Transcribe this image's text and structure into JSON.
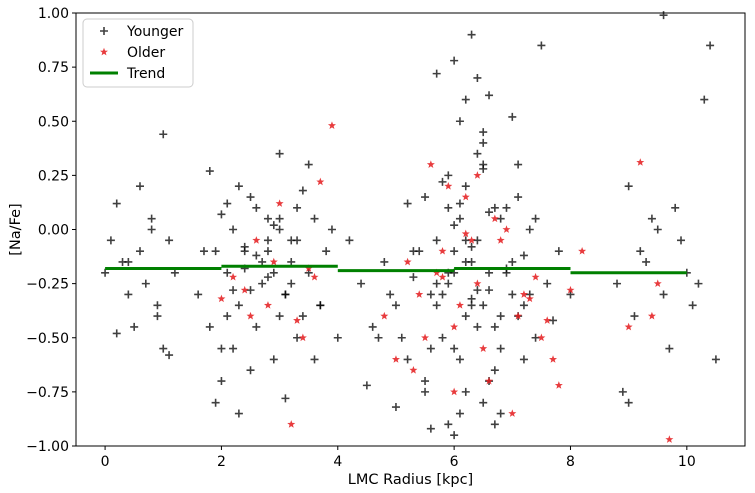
{
  "chart_data": {
    "type": "scatter",
    "title": "",
    "xlabel": "LMC Radius [kpc]",
    "ylabel": "[Na/Fe]",
    "xlim": [
      -0.5,
      11.0
    ],
    "ylim": [
      -1.0,
      1.0
    ],
    "xticks": [
      "0",
      "2",
      "4",
      "6",
      "8",
      "10"
    ],
    "yticks": [
      "−1.00",
      "−0.75",
      "−0.50",
      "−0.25",
      "0.00",
      "0.25",
      "0.50",
      "0.75",
      "1.00"
    ],
    "grid": false,
    "legend_position": "upper-left",
    "series": [
      {
        "name": "Younger",
        "marker": "plus",
        "color": "#000000",
        "x": [
          0.0,
          0.1,
          0.2,
          0.3,
          0.4,
          0.5,
          0.6,
          0.7,
          0.8,
          0.9,
          1.0,
          1.1,
          1.2,
          0.2,
          0.6,
          0.8,
          1.0,
          0.4,
          0.9,
          1.1,
          1.6,
          1.7,
          1.8,
          1.9,
          2.0,
          2.1,
          2.2,
          2.3,
          2.4,
          2.5,
          2.6,
          2.7,
          2.8,
          2.9,
          3.0,
          3.1,
          3.2,
          3.3,
          3.4,
          3.5,
          3.6,
          3.7,
          3.8,
          3.9,
          4.0,
          2.2,
          2.4,
          2.6,
          2.8,
          3.0,
          3.2,
          3.4,
          2.5,
          2.7,
          2.9,
          3.1,
          3.3,
          2.3,
          2.6,
          3.0,
          2.0,
          2.1,
          2.4,
          2.8,
          3.2,
          3.6,
          1.9,
          2.3,
          3.5,
          2.1,
          2.2,
          2.9,
          3.3,
          3.7,
          2.5,
          3.1,
          2.8,
          3.0,
          1.8,
          2.0,
          4.2,
          4.4,
          4.6,
          4.8,
          5.0,
          5.2,
          5.4,
          5.6,
          5.8,
          6.0,
          6.2,
          6.4,
          6.6,
          6.8,
          7.0,
          7.2,
          7.4,
          7.6,
          7.8,
          8.0,
          5.5,
          5.7,
          5.9,
          6.1,
          6.3,
          6.5,
          6.7,
          6.9,
          7.1,
          7.3,
          5.6,
          5.8,
          6.0,
          6.2,
          6.4,
          6.6,
          6.8,
          7.0,
          7.2,
          7.4,
          5.3,
          5.5,
          5.7,
          5.9,
          6.1,
          6.3,
          6.5,
          6.7,
          6.9,
          7.1,
          4.9,
          5.1,
          5.3,
          5.5,
          5.7,
          5.9,
          6.1,
          6.3,
          6.5,
          6.7,
          6.0,
          6.2,
          6.4,
          6.6,
          6.8,
          5.8,
          6.0,
          6.2,
          6.4,
          6.6,
          5.9,
          6.1,
          6.3,
          6.5,
          6.7,
          6.0,
          6.2,
          6.4,
          7.5,
          7.7,
          6.3,
          6.5,
          6.1,
          5.9,
          7.0,
          6.8,
          7.2,
          5.6,
          4.5,
          4.7,
          5.0,
          5.2,
          6.5,
          7.3,
          6.0,
          6.6,
          5.7,
          7.1,
          6.2,
          6.9,
          8.8,
          9.0,
          9.2,
          9.4,
          9.6,
          9.8,
          10.0,
          10.2,
          10.4,
          8.9,
          9.1,
          9.3,
          9.5,
          9.7,
          9.9,
          10.1,
          10.3,
          10.5,
          9.0,
          9.6
        ],
        "y": [
          -0.2,
          -0.05,
          0.12,
          -0.15,
          -0.3,
          -0.45,
          -0.1,
          -0.25,
          0.05,
          -0.35,
          -0.55,
          -0.05,
          -0.2,
          -0.48,
          0.2,
          0.0,
          0.44,
          -0.15,
          -0.4,
          -0.58,
          -0.3,
          -0.1,
          0.27,
          -0.8,
          -0.55,
          -0.2,
          0.0,
          -0.35,
          -0.1,
          0.15,
          -0.45,
          -0.25,
          -0.05,
          -0.6,
          0.05,
          -0.3,
          -0.15,
          0.1,
          -0.4,
          -0.2,
          0.05,
          -0.35,
          -0.1,
          0.0,
          -0.5,
          -0.28,
          -0.08,
          0.1,
          -0.22,
          -0.4,
          -0.05,
          0.18,
          -0.65,
          -0.15,
          0.02,
          -0.3,
          -0.5,
          0.2,
          -0.12,
          0.35,
          -0.7,
          -0.4,
          -0.18,
          0.05,
          -0.25,
          -0.6,
          -0.1,
          -0.85,
          0.3,
          0.12,
          -0.55,
          -0.2,
          -0.05,
          -0.35,
          -0.28,
          -0.78,
          -0.1,
          0.0,
          -0.45,
          0.07,
          -0.05,
          -0.25,
          -0.45,
          -0.15,
          -0.35,
          -0.6,
          -0.1,
          -0.3,
          -0.5,
          -0.2,
          -0.4,
          -0.05,
          -0.28,
          -0.55,
          -0.15,
          -0.35,
          0.05,
          -0.25,
          -0.1,
          -0.3,
          0.15,
          -0.05,
          -0.25,
          0.05,
          -0.15,
          -0.35,
          0.1,
          -0.2,
          -0.4,
          0.0,
          -0.55,
          -0.3,
          -0.1,
          0.2,
          -0.45,
          -0.2,
          0.05,
          -0.3,
          -0.12,
          -0.5,
          -0.22,
          -0.7,
          -0.35,
          0.25,
          -0.6,
          -0.08,
          0.3,
          -0.45,
          -0.18,
          0.15,
          -0.3,
          -0.5,
          -0.1,
          -0.75,
          -0.25,
          0.1,
          -0.85,
          -0.35,
          0.4,
          -0.65,
          0.02,
          -0.15,
          -0.28,
          0.08,
          -0.4,
          0.22,
          -0.55,
          -0.05,
          0.35,
          -0.7,
          -0.2,
          0.12,
          -0.32,
          0.45,
          -0.9,
          -0.95,
          0.6,
          0.7,
          0.85,
          -0.42,
          0.9,
          -0.8,
          0.5,
          -0.9,
          0.52,
          -0.85,
          -0.6,
          -0.92,
          -0.72,
          -0.5,
          -0.82,
          0.12,
          0.28,
          -0.3,
          0.78,
          0.62,
          0.72,
          0.3,
          -0.75,
          0.1,
          -0.25,
          0.2,
          -0.1,
          0.05,
          -0.3,
          0.1,
          -0.2,
          -0.25,
          0.85,
          -0.75,
          -0.4,
          -0.15,
          0.0,
          -0.55,
          -0.05,
          -0.35,
          0.6,
          -0.6,
          -0.8,
          0.99
        ]
      },
      {
        "name": "Older",
        "marker": "star",
        "color": "#e41a1c",
        "x": [
          2.0,
          2.2,
          2.5,
          2.6,
          2.8,
          3.0,
          3.2,
          3.4,
          3.6,
          3.7,
          3.9,
          2.4,
          3.3,
          3.5,
          2.9,
          4.8,
          5.0,
          5.2,
          5.4,
          5.6,
          5.8,
          6.0,
          6.2,
          6.4,
          6.6,
          6.8,
          7.0,
          7.2,
          7.4,
          7.6,
          7.8,
          8.0,
          8.2,
          5.5,
          5.9,
          6.1,
          6.3,
          6.5,
          6.7,
          5.3,
          5.7,
          6.9,
          7.1,
          7.5,
          6.0,
          6.2,
          5.8,
          6.4,
          7.3,
          7.7,
          9.0,
          9.2,
          9.4,
          9.5,
          9.7
        ],
        "y": [
          -0.32,
          -0.22,
          -0.4,
          -0.05,
          -0.35,
          0.12,
          -0.9,
          -0.5,
          -0.22,
          0.22,
          0.48,
          -0.28,
          -0.42,
          -0.18,
          -0.15,
          -0.4,
          -0.6,
          -0.15,
          -0.3,
          0.3,
          -0.1,
          -0.45,
          0.15,
          -0.25,
          -0.7,
          -0.05,
          -0.85,
          -0.3,
          -0.22,
          -0.42,
          -0.72,
          -0.28,
          -0.1,
          -0.5,
          0.2,
          -0.35,
          -0.05,
          -0.55,
          0.05,
          -0.65,
          -0.2,
          0.0,
          -0.4,
          -0.5,
          -0.75,
          -0.02,
          -0.22,
          0.25,
          -0.32,
          -0.6,
          -0.45,
          0.31,
          -0.4,
          -0.25,
          -0.97
        ]
      },
      {
        "name": "Trend",
        "marker": "line",
        "color": "#008000",
        "x": [
          0.0,
          2.0,
          2.0,
          4.0,
          4.0,
          6.0,
          6.0,
          8.0,
          8.0,
          10.0
        ],
        "y": [
          -0.18,
          -0.18,
          -0.17,
          -0.17,
          -0.19,
          -0.19,
          -0.18,
          -0.18,
          -0.2,
          -0.2
        ]
      }
    ]
  }
}
